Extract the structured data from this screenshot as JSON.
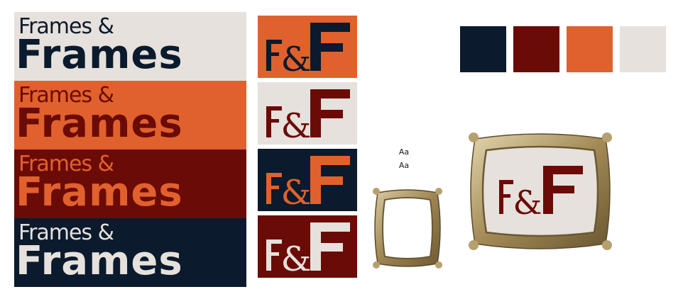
{
  "brand": {
    "wordmark_line1": "Frames &",
    "wordmark_line2": "Frames",
    "monogram_left": "F",
    "monogram_amp": "&",
    "monogram_right": "F"
  },
  "colors": {
    "navy": "#0b1a2c",
    "maroon": "#6b0b07",
    "orange": "#e0612d",
    "cream": "#e6e1dc",
    "gold": "#a8925f"
  },
  "wordmarks": [
    {
      "bg": "#e6e1dc",
      "fg": "#0b1a2c"
    },
    {
      "bg": "#e0612d",
      "fg": "#6b0b07"
    },
    {
      "bg": "#6b0b07",
      "fg": "#e0612d"
    },
    {
      "bg": "#0b1a2c",
      "fg": "#e6e1dc"
    }
  ],
  "monograms": [
    {
      "bg": "#e0612d",
      "fg": "#0b1a2c"
    },
    {
      "bg": "#e6e1dc",
      "fg": "#6b0b07"
    },
    {
      "bg": "#0b1a2c",
      "fg": "#e0612d"
    },
    {
      "bg": "#6b0b07",
      "fg": "#e6e1dc"
    }
  ],
  "specimen": {
    "sample1": "Aa",
    "sample2": "Aa"
  },
  "palette": [
    "#0b1a2c",
    "#6b0b07",
    "#e0612d",
    "#e6e1dc"
  ]
}
